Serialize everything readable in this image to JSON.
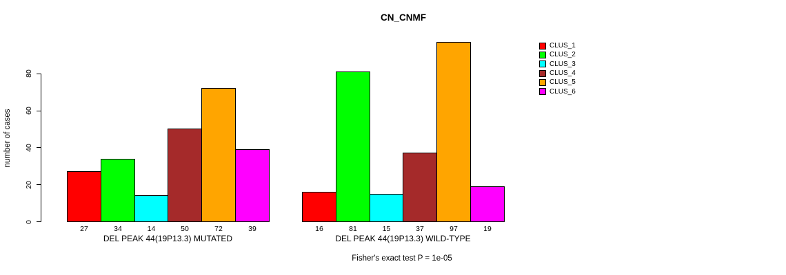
{
  "chart_data": {
    "type": "bar",
    "title": "CN_CNMF",
    "ylabel": "number of cases",
    "xlabel": "",
    "yticks": [
      0,
      20,
      40,
      60,
      80
    ],
    "ylim": [
      0,
      100
    ],
    "grid": false,
    "legend_position": "right",
    "series_labels": [
      "CLUS_1",
      "CLUS_2",
      "CLUS_3",
      "CLUS_4",
      "CLUS_5",
      "CLUS_6"
    ],
    "colors": [
      "#FF0000",
      "#00FF00",
      "#00FFFF",
      "#A52A2A",
      "#FFA500",
      "#FF00FF"
    ],
    "bar_border_color": "#000000",
    "groups": [
      {
        "label": "DEL PEAK 44(19P13.3) MUTATED",
        "values": [
          27,
          34,
          14,
          50,
          72,
          39
        ]
      },
      {
        "label": "DEL PEAK 44(19P13.3) WILD-TYPE",
        "values": [
          16,
          81,
          15,
          37,
          97,
          19
        ]
      }
    ],
    "annotation": "Fisher's exact test P = 1e-05"
  }
}
